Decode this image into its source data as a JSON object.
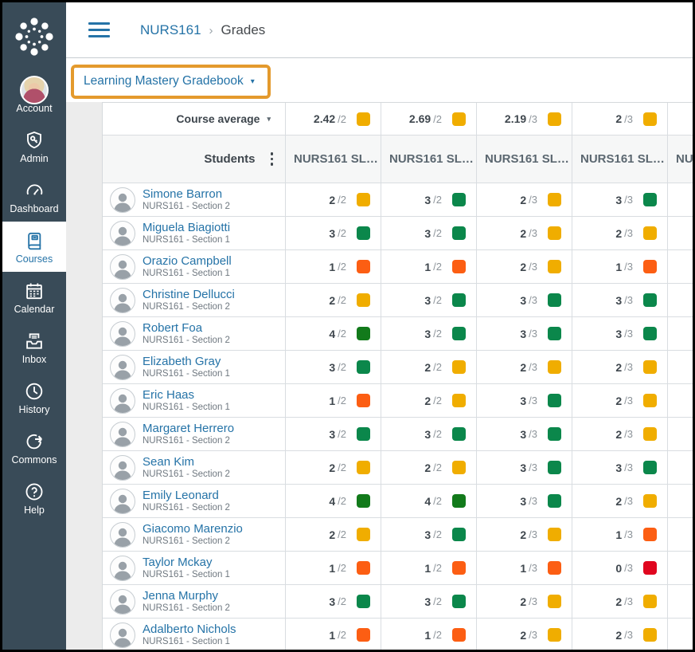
{
  "sidebar": {
    "bg_color": "#394B58",
    "active_color": "#2573A7",
    "items": [
      {
        "label": "Account",
        "icon": "account-avatar-icon",
        "active": false
      },
      {
        "label": "Admin",
        "icon": "shield-key-icon",
        "active": false
      },
      {
        "label": "Dashboard",
        "icon": "gauge-icon",
        "active": false
      },
      {
        "label": "Courses",
        "icon": "book-icon",
        "active": true
      },
      {
        "label": "Calendar",
        "icon": "calendar-icon",
        "active": false
      },
      {
        "label": "Inbox",
        "icon": "inbox-icon",
        "active": false
      },
      {
        "label": "History",
        "icon": "clock-icon",
        "active": false
      },
      {
        "label": "Commons",
        "icon": "share-arrow-icon",
        "active": false
      },
      {
        "label": "Help",
        "icon": "question-icon",
        "active": false
      }
    ]
  },
  "header": {
    "breadcrumb": {
      "course": "NURS161",
      "separator": "›",
      "page": "Grades"
    }
  },
  "toolbar": {
    "gradebook_selector_label": "Learning Mastery Gradebook",
    "caret": "▾",
    "highlight_color": "#E49A2D"
  },
  "grid": {
    "course_average_label": "Course average",
    "course_average_caret": "▾",
    "students_label": "Students",
    "outcome_column_label": "NURS161 SL…",
    "outcome_columns_visible": 4,
    "partial_column_label": "NURS161 SL…",
    "levels": {
      "exceeds": "#127A1B",
      "mastery": "#0B874B",
      "near": "#F0AD00",
      "below": "#FC5E13",
      "well_below": "#E0061F"
    },
    "course_average": [
      {
        "v": "2.42",
        "d": "/2",
        "l": "near"
      },
      {
        "v": "2.69",
        "d": "/2",
        "l": "near"
      },
      {
        "v": "2.19",
        "d": "/3",
        "l": "near"
      },
      {
        "v": "2",
        "d": "/3",
        "l": "near"
      }
    ],
    "students": [
      {
        "name": "Simone Barron",
        "section": "NURS161 - Section 2",
        "scores": [
          {
            "v": "2",
            "d": "/2",
            "l": "near"
          },
          {
            "v": "3",
            "d": "/2",
            "l": "mastery"
          },
          {
            "v": "2",
            "d": "/3",
            "l": "near"
          },
          {
            "v": "3",
            "d": "/3",
            "l": "mastery"
          }
        ]
      },
      {
        "name": "Miguela Biagiotti",
        "section": "NURS161 - Section 1",
        "scores": [
          {
            "v": "3",
            "d": "/2",
            "l": "mastery"
          },
          {
            "v": "3",
            "d": "/2",
            "l": "mastery"
          },
          {
            "v": "2",
            "d": "/3",
            "l": "near"
          },
          {
            "v": "2",
            "d": "/3",
            "l": "near"
          }
        ]
      },
      {
        "name": "Orazio Campbell",
        "section": "NURS161 - Section 1",
        "scores": [
          {
            "v": "1",
            "d": "/2",
            "l": "below"
          },
          {
            "v": "1",
            "d": "/2",
            "l": "below"
          },
          {
            "v": "2",
            "d": "/3",
            "l": "near"
          },
          {
            "v": "1",
            "d": "/3",
            "l": "below"
          }
        ]
      },
      {
        "name": "Christine Dellucci",
        "section": "NURS161 - Section 2",
        "scores": [
          {
            "v": "2",
            "d": "/2",
            "l": "near"
          },
          {
            "v": "3",
            "d": "/2",
            "l": "mastery"
          },
          {
            "v": "3",
            "d": "/3",
            "l": "mastery"
          },
          {
            "v": "3",
            "d": "/3",
            "l": "mastery"
          }
        ]
      },
      {
        "name": "Robert Foa",
        "section": "NURS161 - Section 2",
        "scores": [
          {
            "v": "4",
            "d": "/2",
            "l": "exceeds"
          },
          {
            "v": "3",
            "d": "/2",
            "l": "mastery"
          },
          {
            "v": "3",
            "d": "/3",
            "l": "mastery"
          },
          {
            "v": "3",
            "d": "/3",
            "l": "mastery"
          }
        ]
      },
      {
        "name": "Elizabeth Gray",
        "section": "NURS161 - Section 1",
        "scores": [
          {
            "v": "3",
            "d": "/2",
            "l": "mastery"
          },
          {
            "v": "2",
            "d": "/2",
            "l": "near"
          },
          {
            "v": "2",
            "d": "/3",
            "l": "near"
          },
          {
            "v": "2",
            "d": "/3",
            "l": "near"
          }
        ]
      },
      {
        "name": "Eric Haas",
        "section": "NURS161 - Section 1",
        "scores": [
          {
            "v": "1",
            "d": "/2",
            "l": "below"
          },
          {
            "v": "2",
            "d": "/2",
            "l": "near"
          },
          {
            "v": "3",
            "d": "/3",
            "l": "mastery"
          },
          {
            "v": "2",
            "d": "/3",
            "l": "near"
          }
        ]
      },
      {
        "name": "Margaret Herrero",
        "section": "NURS161 - Section 2",
        "scores": [
          {
            "v": "3",
            "d": "/2",
            "l": "mastery"
          },
          {
            "v": "3",
            "d": "/2",
            "l": "mastery"
          },
          {
            "v": "3",
            "d": "/3",
            "l": "mastery"
          },
          {
            "v": "2",
            "d": "/3",
            "l": "near"
          }
        ]
      },
      {
        "name": "Sean Kim",
        "section": "NURS161 - Section 2",
        "scores": [
          {
            "v": "2",
            "d": "/2",
            "l": "near"
          },
          {
            "v": "2",
            "d": "/2",
            "l": "near"
          },
          {
            "v": "3",
            "d": "/3",
            "l": "mastery"
          },
          {
            "v": "3",
            "d": "/3",
            "l": "mastery"
          }
        ]
      },
      {
        "name": "Emily Leonard",
        "section": "NURS161 - Section 2",
        "scores": [
          {
            "v": "4",
            "d": "/2",
            "l": "exceeds"
          },
          {
            "v": "4",
            "d": "/2",
            "l": "exceeds"
          },
          {
            "v": "3",
            "d": "/3",
            "l": "mastery"
          },
          {
            "v": "2",
            "d": "/3",
            "l": "near"
          }
        ]
      },
      {
        "name": "Giacomo Marenzio",
        "section": "NURS161 - Section 2",
        "scores": [
          {
            "v": "2",
            "d": "/2",
            "l": "near"
          },
          {
            "v": "3",
            "d": "/2",
            "l": "mastery"
          },
          {
            "v": "2",
            "d": "/3",
            "l": "near"
          },
          {
            "v": "1",
            "d": "/3",
            "l": "below"
          }
        ]
      },
      {
        "name": "Taylor Mckay",
        "section": "NURS161 - Section 1",
        "scores": [
          {
            "v": "1",
            "d": "/2",
            "l": "below"
          },
          {
            "v": "1",
            "d": "/2",
            "l": "below"
          },
          {
            "v": "1",
            "d": "/3",
            "l": "below"
          },
          {
            "v": "0",
            "d": "/3",
            "l": "well_below"
          }
        ]
      },
      {
        "name": "Jenna Murphy",
        "section": "NURS161 - Section 2",
        "scores": [
          {
            "v": "3",
            "d": "/2",
            "l": "mastery"
          },
          {
            "v": "3",
            "d": "/2",
            "l": "mastery"
          },
          {
            "v": "2",
            "d": "/3",
            "l": "near"
          },
          {
            "v": "2",
            "d": "/3",
            "l": "near"
          }
        ]
      },
      {
        "name": "Adalberto Nichols",
        "section": "NURS161 - Section 1",
        "scores": [
          {
            "v": "1",
            "d": "/2",
            "l": "below"
          },
          {
            "v": "1",
            "d": "/2",
            "l": "below"
          },
          {
            "v": "2",
            "d": "/3",
            "l": "near"
          },
          {
            "v": "2",
            "d": "/3",
            "l": "near"
          }
        ]
      }
    ]
  }
}
